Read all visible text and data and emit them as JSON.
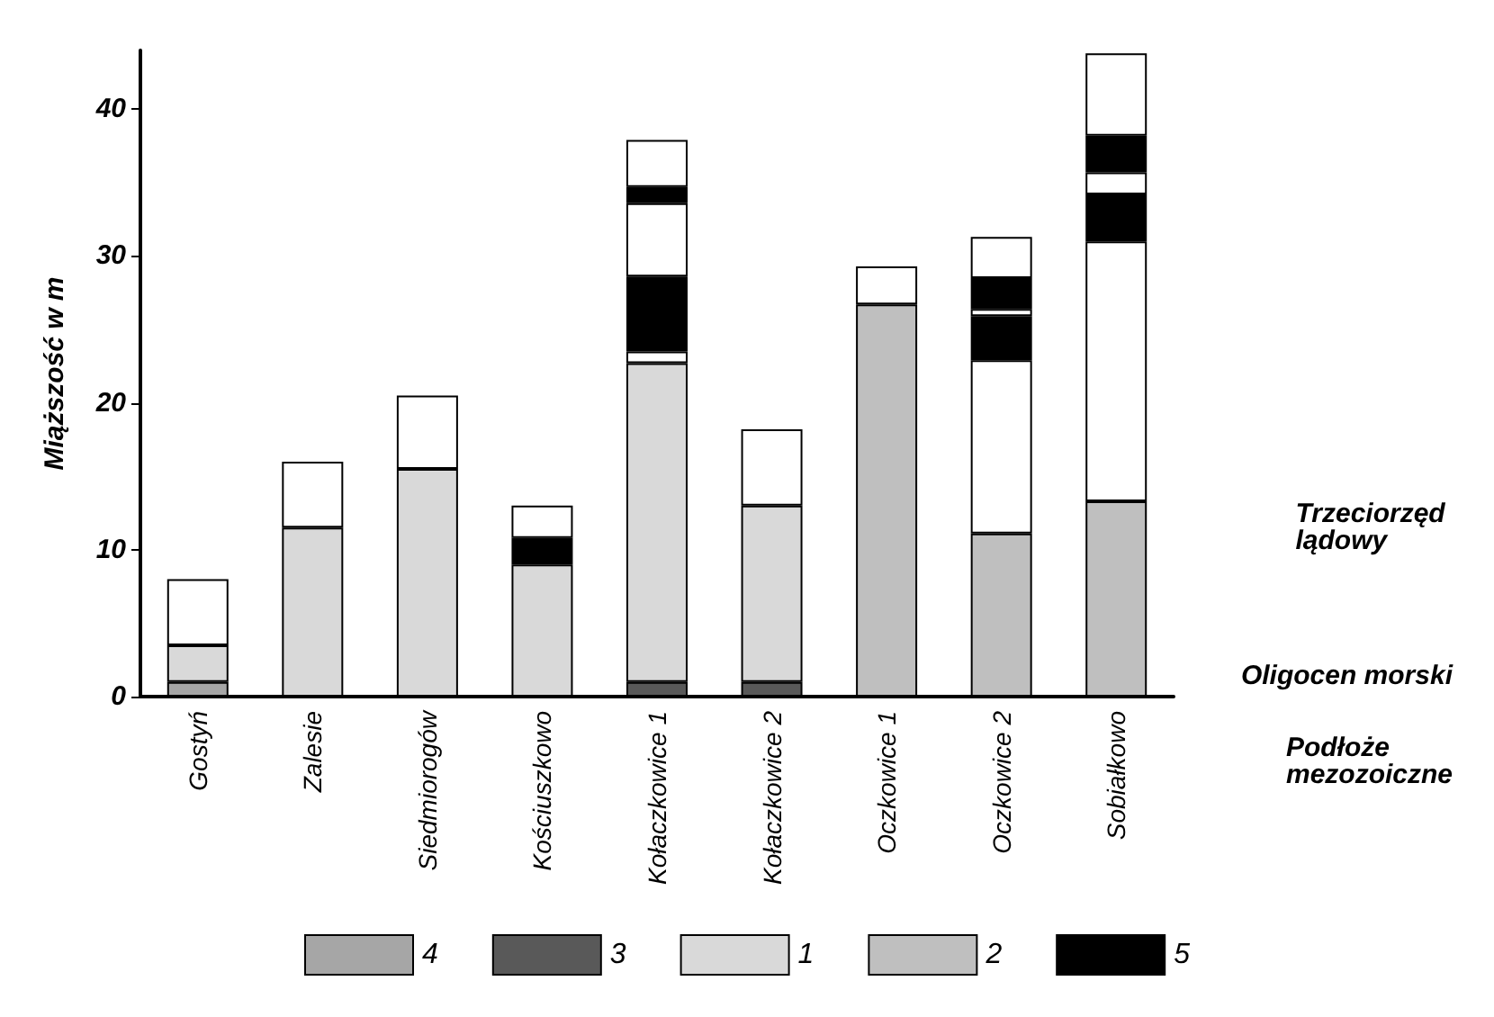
{
  "chart_data": {
    "type": "bar",
    "stacked": true,
    "ylabel": "Miąższość w m",
    "categories": [
      "Gostyń",
      "Zalesie",
      "Siedmiorogów",
      "Kościuszkowo",
      "Kołaczkowice 1",
      "Kołaczkowice 2",
      "Oczkowice 1",
      "Oczkowice 2",
      "Sobiałkowo"
    ],
    "series": [
      {
        "name": "4",
        "color": "#a6a6a6",
        "values": [
          1,
          0,
          0,
          0,
          0,
          0,
          0,
          0,
          0
        ]
      },
      {
        "name": "3",
        "color": "#595959",
        "values": [
          0,
          0,
          0,
          0,
          1,
          1,
          0,
          0,
          0
        ]
      },
      {
        "name": "1",
        "color": "#d9d9d9",
        "values": [
          2.5,
          11.5,
          15.5,
          9,
          21.7,
          12,
          0,
          0,
          0
        ]
      },
      {
        "name": "2",
        "color": "#bfbfbf",
        "values": [
          0,
          0,
          0,
          0,
          0,
          0,
          26.7,
          11.1,
          13.3
        ]
      },
      {
        "color": "#ffffff",
        "values": [
          4.5,
          4.5,
          5,
          0,
          0.8,
          5.2,
          2.6,
          11.8,
          17.7
        ]
      },
      {
        "name": "5",
        "color": "#000000",
        "values": [
          0,
          0,
          0,
          1.8,
          5.1,
          0,
          0,
          3,
          3.2
        ]
      },
      {
        "color": "#ffffff",
        "values": [
          0,
          0,
          0,
          2.2,
          5,
          0,
          0,
          0.5,
          1.5
        ]
      },
      {
        "color": "#000000",
        "values": [
          0,
          0,
          0,
          0,
          1.1,
          0,
          0,
          2.1,
          2.5
        ]
      },
      {
        "color": "#ffffff",
        "values": [
          0,
          0,
          0,
          0,
          3.2,
          0,
          0,
          2.8,
          5.6
        ]
      }
    ],
    "ylim": [
      0,
      44
    ],
    "yticks": [
      0,
      10,
      20,
      30,
      40
    ],
    "grid": false,
    "legend": "bottom",
    "annotations": [
      "Trzeciorzęd lądowy",
      "Oligocen morski",
      "Podłoże mezozoiczne"
    ]
  }
}
